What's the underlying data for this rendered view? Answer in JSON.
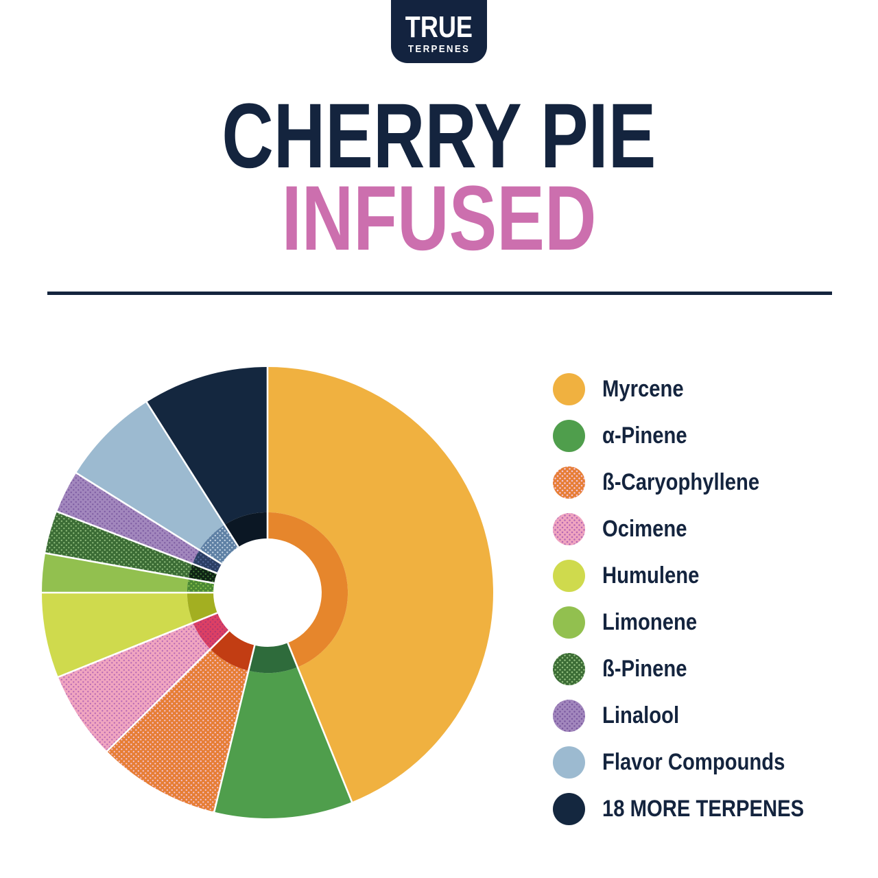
{
  "brand": {
    "logo_top": "TRUE",
    "logo_bottom": "TERPENES"
  },
  "header": {
    "title_line1": "CHERRY PIE",
    "title_line2": "INFUSED",
    "title_color": "#14243E",
    "accent_color": "#CC6FAE"
  },
  "divider_color": "#14243E",
  "chart_data": {
    "type": "pie",
    "style": "donut with darker inner ring",
    "title": "Cherry Pie Infused terpene profile",
    "start_angle_deg": 0,
    "clockwise": true,
    "hole_radius_pct": 24,
    "inner_ring_outer_radius_pct": 35.6,
    "legend_position": "right",
    "separator_color": "#ffffff",
    "slices": [
      {
        "label": "Myrcene",
        "value_pct": 43.9,
        "color": "#F0B140",
        "dot_color": null,
        "inner_color": "#E6862C",
        "inner_dot_color": null
      },
      {
        "label": "α-Pinene",
        "value_pct": 9.9,
        "color": "#4F9E4C",
        "dot_color": null,
        "inner_color": "#2E6B3B",
        "inner_dot_color": null
      },
      {
        "label": "ß-Caryophyllene",
        "value_pct": 8.8,
        "color": "#E67E35",
        "dot_color": "#F4C3D4",
        "inner_color": "#C23D13",
        "inner_dot_color": null
      },
      {
        "label": "Ocimene",
        "value_pct": 6.3,
        "color": "#F0A5C0",
        "dot_color": "#B668B4",
        "inner_color": "#DC4064",
        "inner_dot_color": "#AD3472"
      },
      {
        "label": "Humulene",
        "value_pct": 6.1,
        "color": "#CFDA4D",
        "dot_color": null,
        "inner_color": "#A3AF21",
        "inner_dot_color": null
      },
      {
        "label": "Limonene",
        "value_pct": 2.8,
        "color": "#92C04F",
        "dot_color": null,
        "inner_color": "#4A8834",
        "inner_dot_color": "#8CC34B"
      },
      {
        "label": "ß-Pinene",
        "value_pct": 3.05,
        "color": "#3B6C35",
        "dot_color": "#8FBC7C",
        "inner_color": "#0F2415",
        "inner_dot_color": "#417A36"
      },
      {
        "label": "Linalool",
        "value_pct": 3.05,
        "color": "#A287BD",
        "dot_color": "#7C5BA1",
        "inner_color": "#2C3F64",
        "inner_dot_color": "#53689A"
      },
      {
        "label": "Flavor Compounds",
        "value_pct": 7.1,
        "color": "#9CBAD0",
        "dot_color": null,
        "inner_color": "#5F81A5",
        "inner_dot_color": "#C9D9E7"
      },
      {
        "label": "18 MORE TERPENES",
        "value_pct": 9.0,
        "color": "#14273F",
        "dot_color": null,
        "inner_color": "#0B1724",
        "inner_dot_color": null
      }
    ]
  }
}
